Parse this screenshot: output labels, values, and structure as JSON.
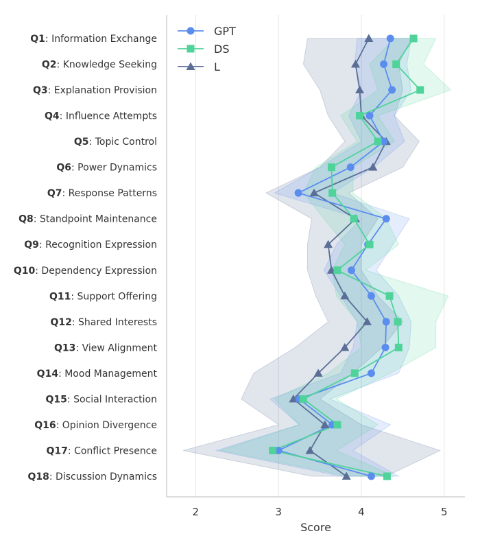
{
  "chart_data": {
    "type": "line",
    "orientation": "horizontal",
    "xlabel": "Score",
    "ylabel": "",
    "xlim": [
      1.65,
      5.25
    ],
    "xticks": [
      2,
      3,
      4,
      5
    ],
    "grid": "vertical",
    "legend_position": "top-left",
    "categories": [
      {
        "code": "Q1",
        "label": ": Information Exchange"
      },
      {
        "code": "Q2",
        "label": ": Knowledge Seeking"
      },
      {
        "code": "Q3",
        "label": ": Explanation Provision"
      },
      {
        "code": "Q4",
        "label": ": Influence Attempts"
      },
      {
        "code": "Q5",
        "label": ": Topic Control"
      },
      {
        "code": "Q6",
        "label": ": Power Dynamics"
      },
      {
        "code": "Q7",
        "label": ": Response Patterns"
      },
      {
        "code": "Q8",
        "label": ": Standpoint Maintenance"
      },
      {
        "code": "Q9",
        "label": ": Recognition Expression"
      },
      {
        "code": "Q10",
        "label": ": Dependency Expression"
      },
      {
        "code": "Q11",
        "label": ": Support Offering"
      },
      {
        "code": "Q12",
        "label": ": Shared Interests"
      },
      {
        "code": "Q13",
        "label": ": View Alignment"
      },
      {
        "code": "Q14",
        "label": ": Mood Management"
      },
      {
        "code": "Q15",
        "label": ": Social Interaction"
      },
      {
        "code": "Q16",
        "label": ": Opinion Divergence"
      },
      {
        "code": "Q17",
        "label": ": Conflict Presence"
      },
      {
        "code": "Q18",
        "label": ": Discussion Dynamics"
      }
    ],
    "series": [
      {
        "name": "GPT",
        "marker": "circle",
        "color": "#5b8def",
        "values": [
          4.35,
          4.27,
          4.37,
          4.1,
          4.27,
          3.87,
          3.24,
          4.3,
          4.08,
          3.88,
          4.12,
          4.3,
          4.29,
          4.12,
          3.25,
          3.65,
          3.0,
          4.12
        ],
        "lower": [
          3.95,
          3.92,
          4.0,
          3.85,
          4.0,
          3.5,
          2.95,
          4.0,
          3.7,
          3.55,
          3.75,
          3.95,
          3.9,
          3.75,
          2.9,
          3.25,
          2.25,
          3.75
        ],
        "upper": [
          4.6,
          4.55,
          4.6,
          4.4,
          4.52,
          4.15,
          3.65,
          4.58,
          4.38,
          4.18,
          4.45,
          4.6,
          4.58,
          4.45,
          3.62,
          4.35,
          3.9,
          4.45
        ]
      },
      {
        "name": "DS",
        "marker": "square",
        "color": "#4fd39a",
        "values": [
          4.63,
          4.42,
          4.71,
          3.98,
          4.2,
          3.64,
          3.65,
          3.91,
          4.1,
          3.71,
          4.34,
          4.44,
          4.45,
          3.92,
          3.3,
          3.71,
          2.93,
          4.31
        ],
        "lower": [
          4.4,
          4.1,
          4.2,
          3.75,
          3.95,
          3.45,
          3.3,
          3.55,
          3.8,
          3.65,
          3.7,
          3.95,
          4.0,
          3.6,
          2.95,
          3.25,
          2.3,
          3.85
        ],
        "upper": [
          4.9,
          4.75,
          5.08,
          4.2,
          4.4,
          3.9,
          3.9,
          4.3,
          4.45,
          4.05,
          5.05,
          4.9,
          4.9,
          4.35,
          3.7,
          4.2,
          3.7,
          4.4
        ]
      },
      {
        "name": "L",
        "marker": "triangle",
        "color": "#5a6e96",
        "values": [
          4.09,
          3.93,
          3.98,
          4.0,
          4.3,
          4.14,
          3.43,
          3.93,
          3.6,
          3.64,
          3.8,
          4.07,
          3.8,
          3.48,
          3.18,
          3.56,
          3.38,
          3.82
        ],
        "lower": [
          3.35,
          3.3,
          3.5,
          3.6,
          3.8,
          3.5,
          2.85,
          3.4,
          3.35,
          3.35,
          3.45,
          3.6,
          3.2,
          2.7,
          2.55,
          3.0,
          1.85,
          3.4
        ],
        "upper": [
          4.6,
          4.45,
          4.5,
          4.4,
          4.7,
          4.5,
          3.85,
          4.2,
          4.0,
          4.0,
          4.2,
          4.5,
          4.25,
          3.9,
          3.5,
          4.0,
          4.95,
          4.3
        ]
      }
    ]
  }
}
